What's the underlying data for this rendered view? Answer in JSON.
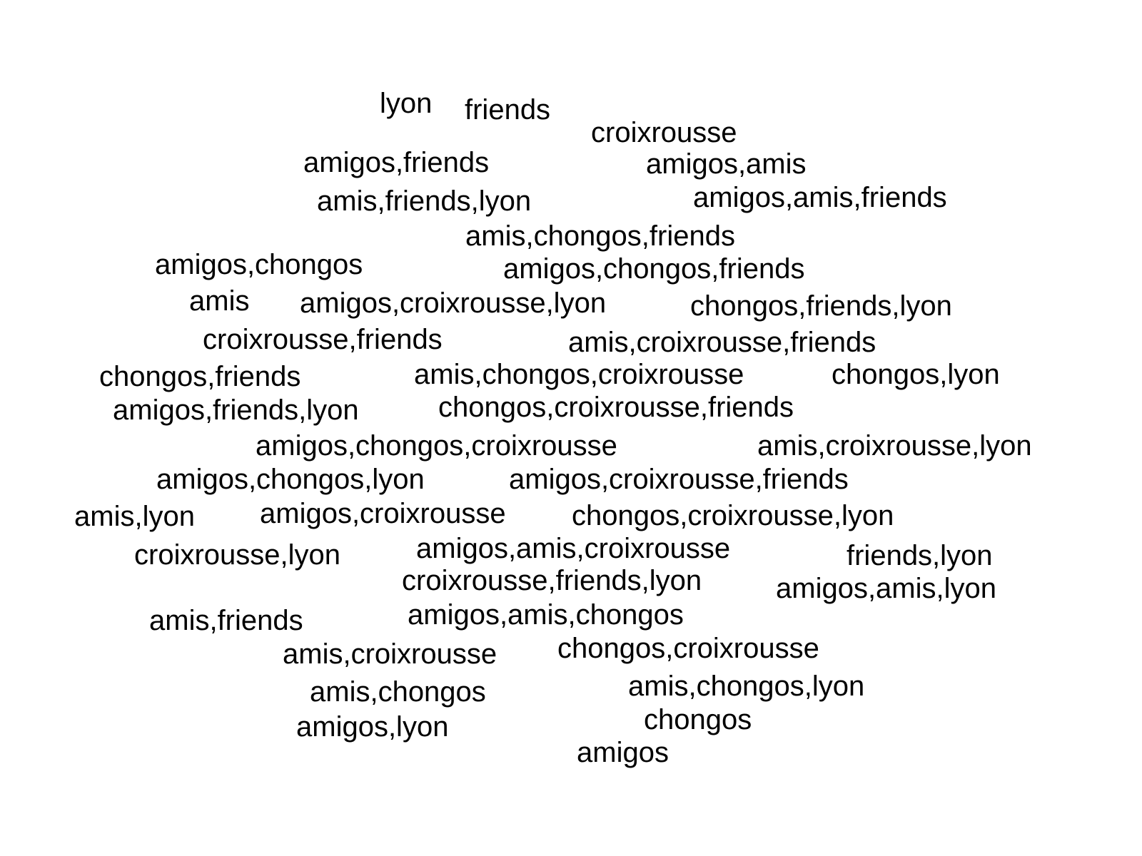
{
  "text_color": "#000000",
  "background_color": "#ffffff",
  "words": [
    "lyon",
    "friends",
    "croixrousse",
    "amigos,friends",
    "amigos,amis",
    "amis,friends,lyon",
    "amigos,amis,friends",
    "amis,chongos,friends",
    "amigos,chongos",
    "amigos,chongos,friends",
    "amis",
    "amigos,croixrousse,lyon",
    "chongos,friends,lyon",
    "croixrousse,friends",
    "amis,croixrousse,friends",
    "chongos,friends",
    "amis,chongos,croixrousse",
    "chongos,lyon",
    "amigos,friends,lyon",
    "chongos,croixrousse,friends",
    "amigos,chongos,croixrousse",
    "amis,croixrousse,lyon",
    "amigos,chongos,lyon",
    "amigos,croixrousse,friends",
    "amis,lyon",
    "amigos,croixrousse",
    "chongos,croixrousse,lyon",
    "croixrousse,lyon",
    "amigos,amis,croixrousse",
    "friends,lyon",
    "croixrousse,friends,lyon",
    "amigos,amis,lyon",
    "amis,friends",
    "amigos,amis,chongos",
    "amis,croixrousse",
    "chongos,croixrousse",
    "amis,chongos",
    "amis,chongos,lyon",
    "amigos,lyon",
    "chongos",
    "amigos"
  ]
}
